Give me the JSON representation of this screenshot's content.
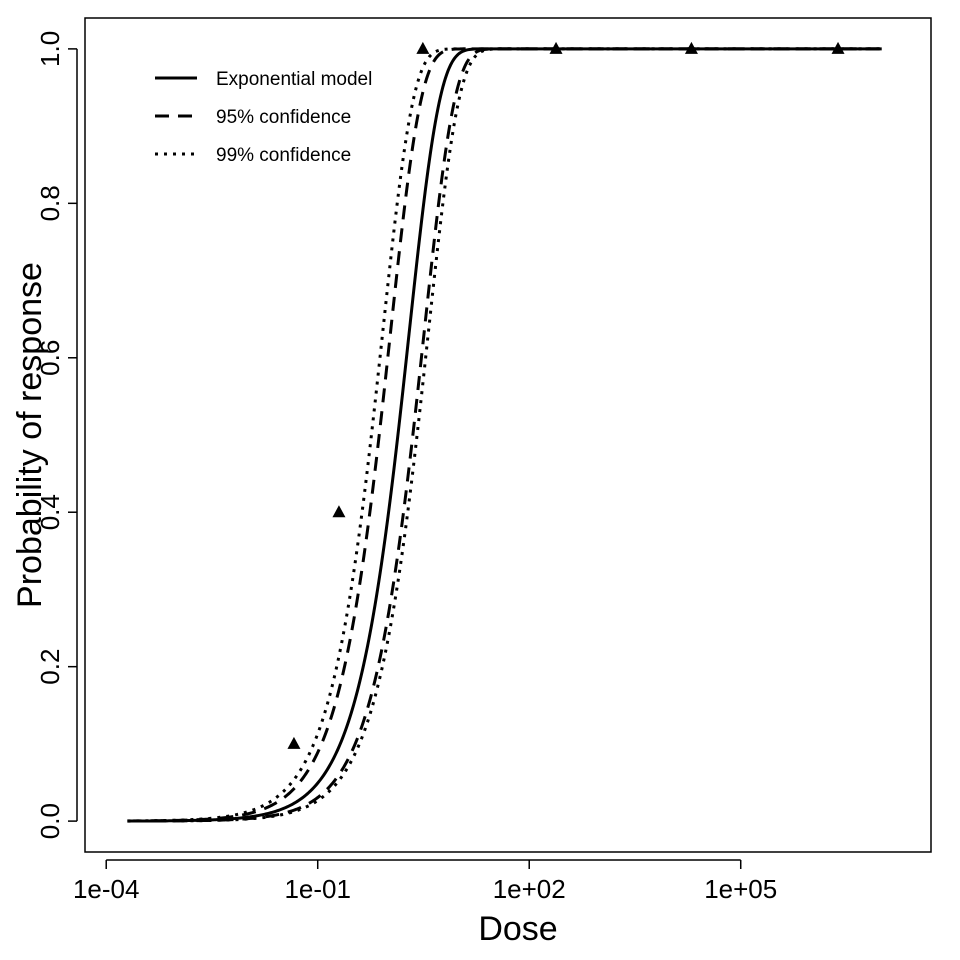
{
  "chart_data": {
    "type": "line",
    "title": "",
    "xlabel": "Dose",
    "ylabel": "Probability of response",
    "x_scale": "log10",
    "x_ticks": [
      0.0001,
      0.1,
      100,
      100000
    ],
    "x_tick_labels": [
      "1e-04",
      "1e-01",
      "1e+02",
      "1e+05"
    ],
    "y_ticks": [
      0.0,
      0.2,
      0.4,
      0.6,
      0.8,
      1.0
    ],
    "y_tick_labels": [
      "0.0",
      "0.2",
      "0.4",
      "0.6",
      "0.8",
      "1.0"
    ],
    "xlim": [
      5e-05,
      50000000
    ],
    "ylim": [
      -0.04,
      1.04
    ],
    "grid": false,
    "legend_position": "top-left",
    "model": "exponential",
    "curve_dose_range": [
      0.0002,
      10000000
    ],
    "series": [
      {
        "name": "Exponential model",
        "style": "solid",
        "k": 0.505
      },
      {
        "name": "95% confidence",
        "style": "dashed",
        "k": 0.93
      },
      {
        "name": "95% confidence",
        "style": "dashed",
        "k": 0.31,
        "show_in_legend": false
      },
      {
        "name": "99% confidence",
        "style": "dotted",
        "k": 1.2,
        "show_in_legend": false
      },
      {
        "name": "99% confidence",
        "style": "dotted",
        "k": 0.27,
        "show_in_legend": false
      }
    ],
    "legend": [
      "Exponential model",
      "95% confidence",
      "99% confidence"
    ],
    "observed_points": {
      "marker": "triangle",
      "x": [
        0.046,
        0.2,
        3.1,
        240,
        20000,
        2400000
      ],
      "y": [
        0.1,
        0.4,
        1.0,
        1.0,
        1.0,
        1.0
      ]
    },
    "colors": {
      "line": "#000000",
      "background": "#ffffff"
    }
  }
}
